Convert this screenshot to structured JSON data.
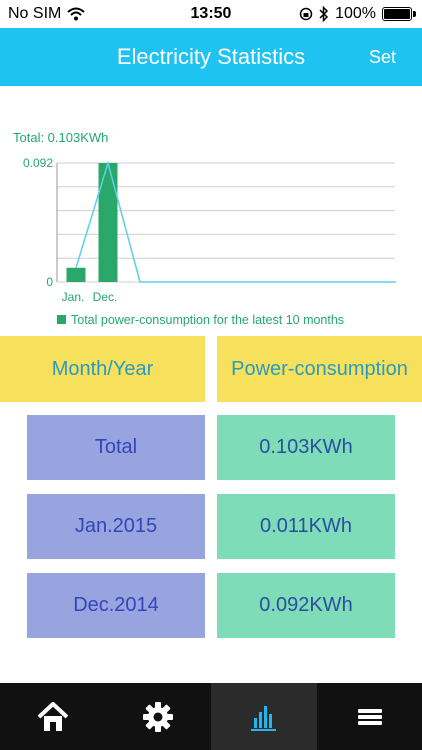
{
  "status": {
    "carrier": "No SIM",
    "time": "13:50",
    "battery": "100%",
    "battery_level": 1.0
  },
  "nav": {
    "title": "Electricity Statistics",
    "set_label": "Set"
  },
  "chart_data": {
    "type": "bar",
    "total_label": "Total:  0.103KWh",
    "categories": [
      "Jan.",
      "Dec."
    ],
    "values": [
      0.011,
      0.092
    ],
    "ylim": [
      0,
      0.092
    ],
    "yticks": [
      "0.092",
      "0"
    ],
    "line_series": [
      0.011,
      0.092,
      0,
      0,
      0,
      0,
      0,
      0,
      0,
      0,
      0
    ],
    "legend": "Total power-consumption for the latest 10 months",
    "colors": {
      "bar": "#2aa86a",
      "line": "#5ad0ea",
      "grid": "#cfcfcf",
      "axis": "#999999"
    }
  },
  "table": {
    "headers": [
      "Month/Year",
      "Power-consumption"
    ],
    "rows": [
      {
        "label": "Total",
        "value": "0.103KWh"
      },
      {
        "label": "Jan.2015",
        "value": "0.011KWh"
      },
      {
        "label": "Dec.2014",
        "value": "0.092KWh"
      }
    ]
  },
  "tabbar": {
    "items": [
      {
        "icon": "home-icon"
      },
      {
        "icon": "gear-icon"
      },
      {
        "icon": "statistics-icon",
        "active": true
      },
      {
        "icon": "menu-icon"
      }
    ],
    "colors": {
      "background": "#111111",
      "active": "#2b2b2b",
      "accent": "#1fb8f0"
    }
  }
}
